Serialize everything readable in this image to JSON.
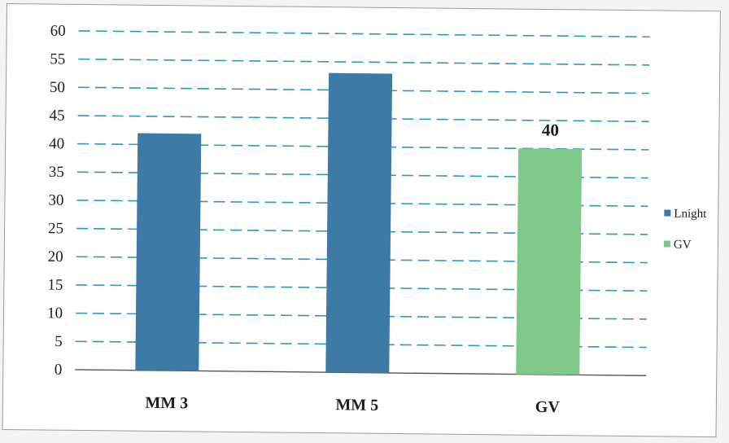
{
  "chart_data": {
    "type": "bar",
    "title": "",
    "xlabel": "",
    "ylabel": "",
    "categories": [
      "MM 3",
      "MM 5",
      "GV"
    ],
    "ylim": [
      0,
      60
    ],
    "yticks": [
      0,
      5,
      10,
      15,
      20,
      25,
      30,
      35,
      40,
      45,
      50,
      55,
      60
    ],
    "grid": true,
    "grid_style": "dashed",
    "grid_color": "#2e97c4",
    "legend_position": "right",
    "series": [
      {
        "name": "Lnight",
        "color": "#3d7aa6",
        "values": [
          42,
          53,
          null
        ]
      },
      {
        "name": "GV",
        "color": "#7ec98a",
        "values": [
          null,
          null,
          40
        ]
      }
    ],
    "data_labels": [
      {
        "category": "GV",
        "series": "GV",
        "text": "40"
      }
    ]
  }
}
